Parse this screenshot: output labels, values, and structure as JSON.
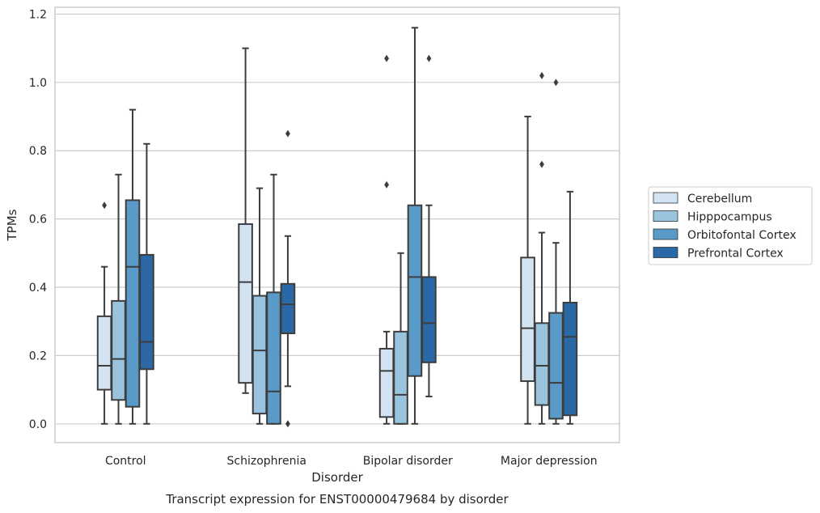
{
  "chart_data": {
    "type": "box",
    "caption": "Transcript expression for ENST00000479684 by disorder",
    "xlabel": "Disorder",
    "ylabel": "TPMs",
    "ylim": [
      -0.055,
      1.22
    ],
    "yticks": [
      "0.0",
      "0.2",
      "0.4",
      "0.6",
      "0.8",
      "1.0",
      "1.2"
    ],
    "ytick_values": [
      0.0,
      0.2,
      0.4,
      0.6,
      0.8,
      1.0,
      1.2
    ],
    "grid": "horizontal",
    "legend_position": "right",
    "categories": [
      "Control",
      "Schizophrenia",
      "Bipolar disorder",
      "Major depression"
    ],
    "series": [
      {
        "name": "Cerebellum",
        "color": "#d3e3f2",
        "boxes": [
          {
            "whislo": 0.0,
            "q1": 0.1,
            "med": 0.17,
            "q3": 0.315,
            "whishi": 0.46,
            "fliers": [
              0.64
            ]
          },
          {
            "whislo": 0.09,
            "q1": 0.12,
            "med": 0.415,
            "q3": 0.585,
            "whishi": 1.1,
            "fliers": []
          },
          {
            "whislo": 0.0,
            "q1": 0.02,
            "med": 0.155,
            "q3": 0.22,
            "whishi": 0.27,
            "fliers": [
              0.7,
              1.07
            ]
          },
          {
            "whislo": 0.0,
            "q1": 0.125,
            "med": 0.28,
            "q3": 0.487,
            "whishi": 0.9,
            "fliers": []
          }
        ]
      },
      {
        "name": "Hipppocampus",
        "color": "#9ac4de",
        "boxes": [
          {
            "whislo": 0.0,
            "q1": 0.07,
            "med": 0.19,
            "q3": 0.36,
            "whishi": 0.73,
            "fliers": []
          },
          {
            "whislo": 0.0,
            "q1": 0.03,
            "med": 0.215,
            "q3": 0.375,
            "whishi": 0.69,
            "fliers": []
          },
          {
            "whislo": 0.0,
            "q1": 0.0,
            "med": 0.085,
            "q3": 0.27,
            "whishi": 0.5,
            "fliers": []
          },
          {
            "whislo": 0.0,
            "q1": 0.055,
            "med": 0.17,
            "q3": 0.295,
            "whishi": 0.56,
            "fliers": [
              0.76,
              1.02
            ]
          }
        ]
      },
      {
        "name": "Orbitofontal Cortex",
        "color": "#5a9ac8",
        "boxes": [
          {
            "whislo": 0.0,
            "q1": 0.05,
            "med": 0.46,
            "q3": 0.655,
            "whishi": 0.92,
            "fliers": []
          },
          {
            "whislo": 0.0,
            "q1": 0.0,
            "med": 0.095,
            "q3": 0.385,
            "whishi": 0.73,
            "fliers": []
          },
          {
            "whislo": 0.0,
            "q1": 0.14,
            "med": 0.43,
            "q3": 0.64,
            "whishi": 1.16,
            "fliers": []
          },
          {
            "whislo": 0.0,
            "q1": 0.015,
            "med": 0.12,
            "q3": 0.325,
            "whishi": 0.53,
            "fliers": [
              1.0
            ]
          }
        ]
      },
      {
        "name": "Prefrontal Cortex",
        "color": "#2b68a6",
        "boxes": [
          {
            "whislo": 0.0,
            "q1": 0.16,
            "med": 0.24,
            "q3": 0.495,
            "whishi": 0.82,
            "fliers": []
          },
          {
            "whislo": 0.11,
            "q1": 0.265,
            "med": 0.35,
            "q3": 0.41,
            "whishi": 0.55,
            "fliers": [
              0.0,
              0.85
            ]
          },
          {
            "whislo": 0.08,
            "q1": 0.18,
            "med": 0.295,
            "q3": 0.43,
            "whishi": 0.64,
            "fliers": [
              1.07
            ]
          },
          {
            "whislo": 0.0,
            "q1": 0.025,
            "med": 0.255,
            "q3": 0.355,
            "whishi": 0.68,
            "fliers": []
          }
        ]
      }
    ]
  }
}
